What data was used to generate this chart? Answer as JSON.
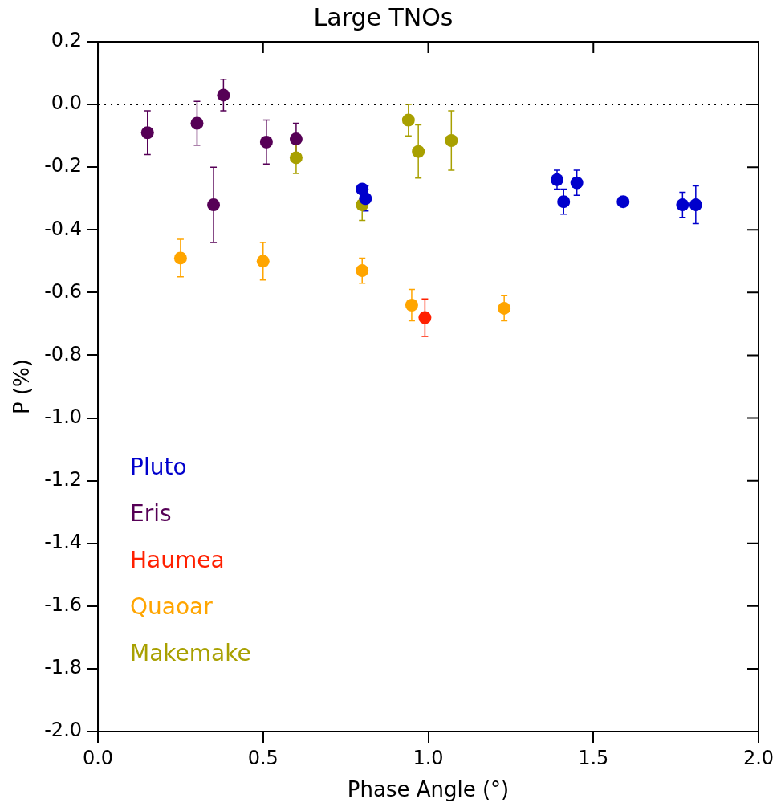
{
  "chart_data": {
    "type": "scatter",
    "title": "Large TNOs",
    "xlabel": "Phase Angle (°)",
    "ylabel": "P (%)",
    "xlim": [
      0,
      2
    ],
    "xticks": [
      {
        "value": 0,
        "label": "0.0"
      },
      {
        "value": 0.5,
        "label": "0.5"
      },
      {
        "value": 1,
        "label": "1.0"
      },
      {
        "value": 1.5,
        "label": "1.5"
      },
      {
        "value": 2,
        "label": "2.0"
      }
    ],
    "ylim": [
      -2,
      0.2
    ],
    "yticks": [
      {
        "value": -2,
        "label": "-2.0"
      },
      {
        "value": -1.8,
        "label": "-1.8"
      },
      {
        "value": -1.6,
        "label": "-1.6"
      },
      {
        "value": -1.4,
        "label": "-1.4"
      },
      {
        "value": -1.2,
        "label": "-1.2"
      },
      {
        "value": -1,
        "label": "-1.0"
      },
      {
        "value": -0.8,
        "label": "-0.8"
      },
      {
        "value": -0.6,
        "label": "-0.6"
      },
      {
        "value": -0.4,
        "label": "-0.4"
      },
      {
        "value": -0.2,
        "label": "-0.2"
      },
      {
        "value": 0,
        "label": "0.0"
      },
      {
        "value": 0.2,
        "label": "0.2"
      }
    ],
    "grid": false,
    "legend": "bottom left",
    "marker": "circle",
    "ref_lines": [
      {
        "axis": "y",
        "value": 0,
        "line_style": "dotted",
        "color": "#000000"
      }
    ],
    "series": [
      {
        "name": "Pluto",
        "color": "#0000cc",
        "x": [
          0.8,
          0.81,
          1.39,
          1.41,
          1.45,
          1.59,
          1.77,
          1.81
        ],
        "values": [
          -0.27,
          -0.3,
          -0.24,
          -0.31,
          -0.25,
          -0.31,
          -0.32,
          -0.32
        ],
        "errors": [
          null,
          0.04,
          0.03,
          0.04,
          0.04,
          null,
          0.04,
          0.06
        ]
      },
      {
        "name": "Eris",
        "color": "#560056",
        "x": [
          0.15,
          0.3,
          0.35,
          0.38,
          0.51,
          0.6
        ],
        "values": [
          -0.09,
          -0.06,
          -0.32,
          0.03,
          -0.12,
          -0.11
        ],
        "errors": [
          0.07,
          0.07,
          0.12,
          0.05,
          0.07,
          0.05
        ]
      },
      {
        "name": "Haumea",
        "color": "#ff2000",
        "x": [
          0.99
        ],
        "values": [
          -0.68
        ],
        "errors": [
          0.06
        ]
      },
      {
        "name": "Quaoar",
        "color": "#ffa500",
        "x": [
          0.25,
          0.5,
          0.8,
          0.95,
          1.23
        ],
        "values": [
          -0.49,
          -0.5,
          -0.53,
          -0.64,
          -0.65
        ],
        "errors": [
          0.06,
          0.06,
          0.04,
          0.05,
          0.04
        ]
      },
      {
        "name": "Makemake",
        "color": "#a8a000",
        "x": [
          0.6,
          0.8,
          0.94,
          0.97,
          1.07
        ],
        "values": [
          -0.17,
          -0.32,
          -0.05,
          -0.15,
          -0.115
        ],
        "errors": [
          0.05,
          0.05,
          0.05,
          0.085,
          0.095
        ]
      }
    ]
  }
}
